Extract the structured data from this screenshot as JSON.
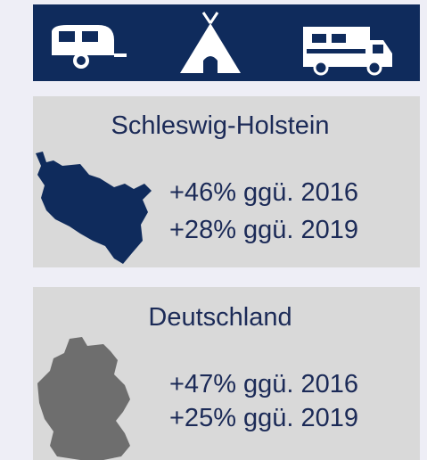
{
  "panels": [
    {
      "title": "Schleswig-Holstein",
      "lines": [
        "+46% ggü. 2016",
        "+28% ggü. 2019"
      ]
    },
    {
      "title": "Deutschland",
      "lines": [
        "+47% ggü. 2016",
        "+25% ggü. 2019"
      ]
    }
  ]
}
